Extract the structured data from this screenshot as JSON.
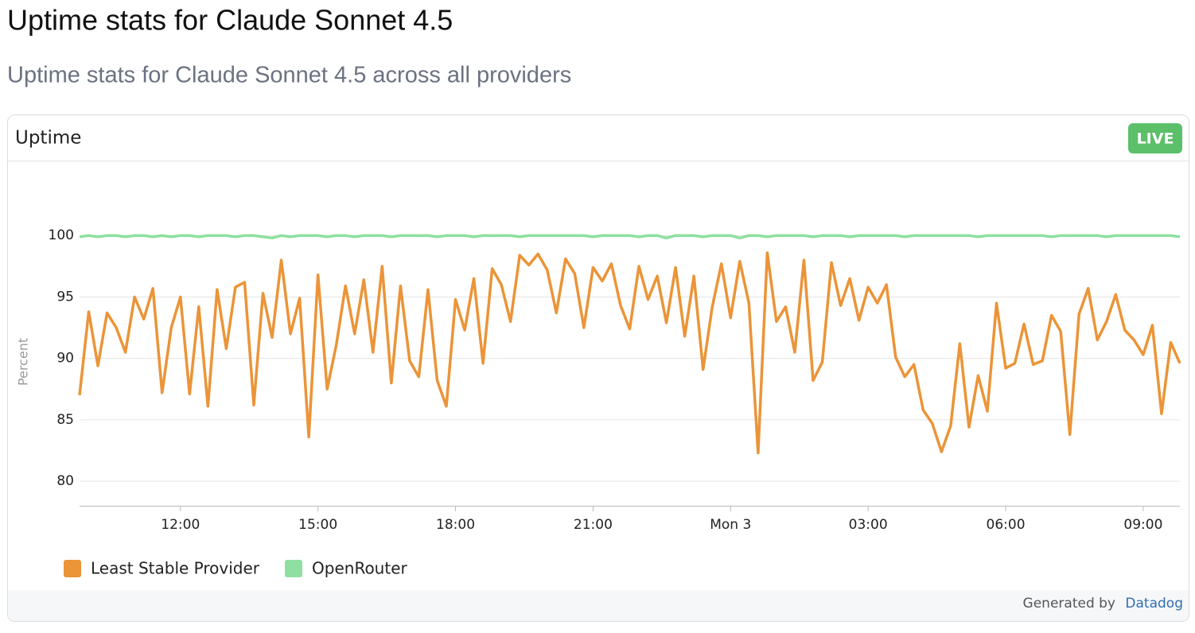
{
  "header": {
    "title": "Uptime stats for Claude Sonnet 4.5",
    "subtitle": "Uptime stats for Claude Sonnet 4.5 across all providers"
  },
  "widget": {
    "title": "Uptime",
    "badge": "LIVE"
  },
  "chart_data": {
    "type": "line",
    "ylabel": "Percent",
    "x": [
      9.8,
      10,
      10.2,
      10.4,
      10.6,
      10.8,
      11,
      11.2,
      11.4,
      11.6,
      11.8,
      12,
      12.2,
      12.4,
      12.6,
      12.8,
      13,
      13.2,
      13.4,
      13.6,
      13.8,
      14,
      14.2,
      14.4,
      14.6,
      14.8,
      15,
      15.2,
      15.4,
      15.6,
      15.8,
      16,
      16.2,
      16.4,
      16.6,
      16.8,
      17,
      17.2,
      17.4,
      17.6,
      17.8,
      18,
      18.2,
      18.4,
      18.6,
      18.8,
      19,
      19.2,
      19.4,
      19.6,
      19.8,
      20,
      20.2,
      20.4,
      20.6,
      20.8,
      21,
      21.2,
      21.4,
      21.6,
      21.8,
      22,
      22.2,
      22.4,
      22.6,
      22.8,
      23,
      23.2,
      23.4,
      23.6,
      23.8,
      24,
      24.2,
      24.4,
      24.6,
      24.8,
      25,
      25.2,
      25.4,
      25.6,
      25.8,
      26,
      26.2,
      26.4,
      26.6,
      26.8,
      27,
      27.2,
      27.4,
      27.6,
      27.8,
      28,
      28.2,
      28.4,
      28.6,
      28.8,
      29,
      29.2,
      29.4,
      29.6,
      29.8,
      30,
      30.2,
      30.4,
      30.6,
      30.8,
      31,
      31.2,
      31.4,
      31.6,
      31.8,
      32,
      32.2,
      32.4,
      32.6,
      32.8,
      33,
      33.2,
      33.4,
      33.6,
      33.8
    ],
    "series": [
      {
        "name": "Least Stable Provider",
        "color": "#eb9438",
        "values": [
          87,
          93.8,
          89.4,
          93.7,
          92.5,
          90.5,
          95,
          93.2,
          95.7,
          87.2,
          92.5,
          95,
          87.1,
          94.2,
          86.1,
          95.6,
          90.8,
          95.8,
          96.2,
          86.2,
          95.3,
          91.7,
          98,
          92,
          94.9,
          83.6,
          96.8,
          87.5,
          91.1,
          95.9,
          92,
          96.4,
          90.5,
          97.5,
          88,
          95.9,
          89.8,
          88.5,
          95.6,
          88.2,
          86.1,
          94.8,
          92.3,
          96.5,
          89.6,
          97.3,
          96,
          93,
          98.4,
          97.6,
          98.5,
          97.2,
          93.7,
          98.1,
          96.9,
          92.5,
          97.4,
          96.3,
          97.7,
          94.3,
          92.4,
          97.5,
          94.8,
          96.7,
          92.9,
          97.4,
          91.8,
          96.7,
          89.1,
          94.2,
          97.7,
          93.3,
          97.9,
          94.5,
          82.3,
          98.6,
          93,
          94.2,
          90.5,
          98,
          88.2,
          89.7,
          97.8,
          94.3,
          96.5,
          93.1,
          95.8,
          94.5,
          96,
          90.1,
          88.5,
          89.5,
          85.8,
          84.7,
          82.4,
          84.5,
          91.2,
          84.4,
          88.6,
          85.7,
          94.5,
          89.2,
          89.6,
          92.8,
          89.5,
          89.8,
          93.5,
          92.2,
          83.8,
          93.6,
          95.7,
          91.5,
          93,
          95.2,
          92.3,
          91.5,
          90.3,
          92.7,
          85.5,
          91.3,
          89.6
        ]
      },
      {
        "name": "OpenRouter",
        "color": "#8fe0a0",
        "values": [
          99.9,
          100,
          99.9,
          100,
          100,
          99.9,
          100,
          100,
          99.9,
          100,
          99.9,
          100,
          100,
          99.9,
          100,
          100,
          100,
          99.9,
          100,
          100,
          99.9,
          99.8,
          100,
          99.9,
          100,
          100,
          100,
          99.9,
          100,
          100,
          99.9,
          100,
          100,
          100,
          99.9,
          100,
          100,
          100,
          100,
          99.9,
          100,
          100,
          100,
          99.9,
          100,
          100,
          100,
          100,
          99.9,
          100,
          100,
          100,
          100,
          100,
          100,
          100,
          99.9,
          100,
          100,
          100,
          100,
          99.9,
          100,
          100,
          99.8,
          100,
          100,
          100,
          99.9,
          100,
          100,
          100,
          99.8,
          100,
          100,
          99.9,
          100,
          100,
          100,
          100,
          99.9,
          100,
          100,
          100,
          99.9,
          100,
          100,
          100,
          100,
          100,
          99.9,
          100,
          100,
          100,
          100,
          100,
          100,
          100,
          99.9,
          100,
          100,
          100,
          100,
          100,
          100,
          100,
          99.9,
          100,
          100,
          100,
          100,
          100,
          99.9,
          100,
          100,
          100,
          100,
          100,
          100,
          100,
          99.9
        ]
      }
    ],
    "xlim": [
      9.8,
      33.8
    ],
    "xticks": [
      {
        "value": 12,
        "label": "12:00"
      },
      {
        "value": 15,
        "label": "15:00"
      },
      {
        "value": 18,
        "label": "18:00"
      },
      {
        "value": 21,
        "label": "21:00"
      },
      {
        "value": 24,
        "label": "Mon 3"
      },
      {
        "value": 27,
        "label": "03:00"
      },
      {
        "value": 30,
        "label": "06:00"
      },
      {
        "value": 33,
        "label": "09:00"
      }
    ],
    "ylim": [
      78,
      105
    ],
    "yticks": [
      80,
      85,
      90,
      95,
      100
    ],
    "grid": true,
    "legend": "bottom-left"
  },
  "footer": {
    "text": "Generated by",
    "link": "Datadog"
  }
}
